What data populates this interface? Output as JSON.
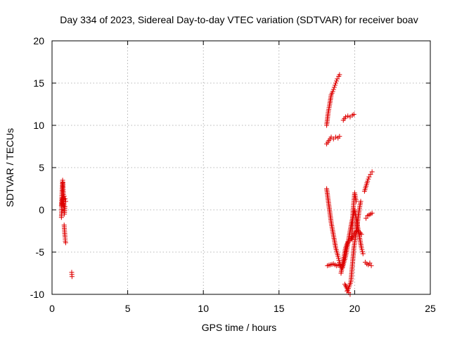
{
  "chart_data": {
    "type": "scatter",
    "title": "Day 334 of 2023, Sidereal Day-to-day VTEC variation (SDTVAR) for receiver boav",
    "xlabel": "GPS time / hours",
    "ylabel": "SDTVAR / TECUs",
    "xlim": [
      0,
      25
    ],
    "ylim": [
      -10,
      20
    ],
    "xticks": [
      0,
      5,
      10,
      15,
      20,
      25
    ],
    "yticks": [
      -10,
      -5,
      0,
      5,
      10,
      15,
      20
    ],
    "grid": true,
    "marker": "plus",
    "color": "#dd0000",
    "segments": [
      {
        "x": [
          0.62,
          0.65,
          0.67,
          0.7,
          0.72,
          0.75,
          0.78,
          0.8,
          0.82,
          0.85
        ],
        "y": [
          0.5,
          1.5,
          2.5,
          3.5,
          3.2,
          2.0,
          1.0,
          0.2,
          -0.5,
          0.4
        ]
      },
      {
        "x": [
          0.62,
          0.66,
          0.7,
          0.74
        ],
        "y": [
          -0.9,
          0.8,
          1.4,
          0.5
        ]
      },
      {
        "x": [
          0.8,
          0.83,
          0.86,
          0.88,
          0.9
        ],
        "y": [
          -1.8,
          -2.6,
          -3.2,
          -3.7,
          -3.9
        ]
      },
      {
        "x": [
          0.72,
          0.8,
          0.86,
          0.9
        ],
        "y": [
          1.2,
          1.6,
          1.3,
          1.0
        ]
      },
      {
        "x": [
          1.3,
          1.32
        ],
        "y": [
          -7.4,
          -7.9
        ]
      },
      {
        "x": [
          18.15,
          18.25,
          18.35,
          18.45,
          18.55,
          18.65,
          18.75,
          18.85,
          18.95,
          19.0
        ],
        "y": [
          10.0,
          11.5,
          12.5,
          13.6,
          14.0,
          14.5,
          15.0,
          15.5,
          15.8,
          16.0
        ]
      },
      {
        "x": [
          18.15,
          18.3,
          18.45,
          18.6,
          18.75,
          18.9,
          19.0
        ],
        "y": [
          7.8,
          8.2,
          8.6,
          8.4,
          8.6,
          8.5,
          8.7
        ]
      },
      {
        "x": [
          19.25,
          19.4,
          19.55,
          19.7,
          19.85,
          19.95
        ],
        "y": [
          10.6,
          11.0,
          11.1,
          11.0,
          11.2,
          11.3
        ]
      },
      {
        "x": [
          18.15,
          18.3,
          18.45,
          18.6,
          18.75,
          18.9,
          19.0,
          19.1
        ],
        "y": [
          2.5,
          0.5,
          -1.5,
          -3.0,
          -4.5,
          -5.5,
          -6.2,
          -6.8
        ]
      },
      {
        "x": [
          18.2,
          18.4,
          18.6,
          18.8,
          19.0
        ],
        "y": [
          -6.6,
          -6.5,
          -6.4,
          -6.6,
          -6.5
        ]
      },
      {
        "x": [
          19.1,
          19.25,
          19.4,
          19.55,
          19.7,
          19.85,
          20.0
        ],
        "y": [
          -7.5,
          -6.0,
          -4.5,
          -3.8,
          -3.6,
          -3.2,
          -2.8
        ]
      },
      {
        "x": [
          19.2,
          19.4,
          19.6,
          19.8,
          20.0,
          20.15,
          20.3,
          20.45,
          20.55
        ],
        "y": [
          -6.8,
          -5.5,
          -3.5,
          -1.5,
          0.0,
          -1.5,
          -3.0,
          -4.5,
          -5.2
        ]
      },
      {
        "x": [
          19.35,
          19.55,
          19.75,
          19.95,
          20.15,
          20.3,
          20.4
        ],
        "y": [
          -8.8,
          -9.5,
          -8.5,
          -4.5,
          -2.0,
          0.0,
          1.0
        ]
      },
      {
        "x": [
          19.5,
          19.6,
          19.7
        ],
        "y": [
          -9.6,
          -9.8,
          -10.0
        ]
      },
      {
        "x": [
          19.8,
          19.9,
          20.0,
          20.1
        ],
        "y": [
          -3.5,
          0.0,
          2.0,
          1.0
        ]
      },
      {
        "x": [
          20.0,
          20.15,
          20.3,
          20.45
        ],
        "y": [
          -2.8,
          -2.5,
          -2.6,
          -2.9
        ]
      },
      {
        "x": [
          20.7,
          20.8,
          20.9,
          21.0,
          21.1
        ],
        "y": [
          -6.2,
          -6.4,
          -6.5,
          -6.3,
          -6.6
        ]
      },
      {
        "x": [
          20.75,
          20.85,
          20.95,
          21.05,
          21.15
        ],
        "y": [
          -1.0,
          -0.7,
          -0.6,
          -0.5,
          -0.4
        ]
      },
      {
        "x": [
          20.65,
          20.75,
          20.85,
          20.95,
          21.05,
          21.15
        ],
        "y": [
          2.2,
          2.8,
          3.4,
          3.9,
          4.2,
          4.5
        ]
      }
    ]
  }
}
